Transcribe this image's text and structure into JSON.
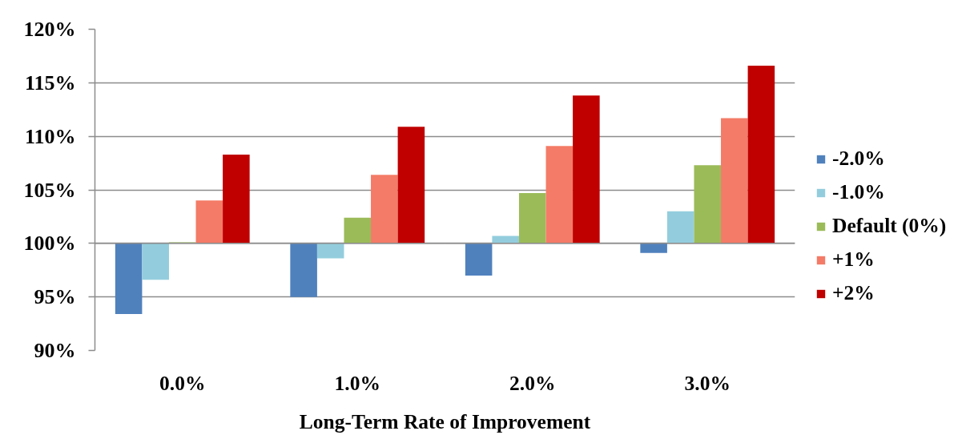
{
  "chart_data": {
    "type": "bar",
    "xlabel": "Long-Term Rate of Improvement",
    "categories": [
      "0.0%",
      "1.0%",
      "2.0%",
      "3.0%"
    ],
    "series": [
      {
        "name": "-2.0%",
        "color": "#4f81bd",
        "base": [
          100,
          100,
          100,
          100
        ],
        "values": [
          -6.6,
          -5.0,
          -3.0,
          -0.9
        ]
      },
      {
        "name": "-1.0%",
        "color": "#93cddd",
        "base": [
          100,
          100,
          100,
          100
        ],
        "values": [
          -3.4,
          -1.4,
          0.7,
          3.0
        ]
      },
      {
        "name": "Default (0%)",
        "color": "#9bbb59",
        "base": [
          100,
          100,
          100,
          100
        ],
        "values": [
          0.1,
          2.4,
          4.7,
          7.3
        ]
      },
      {
        "name": "+1%",
        "color": "#f47b67",
        "base": [
          100,
          100,
          100,
          100
        ],
        "values": [
          4.0,
          6.4,
          9.1,
          11.7
        ]
      },
      {
        "name": "+2%",
        "color": "#c00000",
        "base": [
          100,
          100,
          100,
          100
        ],
        "values": [
          8.3,
          10.9,
          13.8,
          16.6
        ]
      }
    ],
    "ylim": [
      90,
      120
    ],
    "yticks": [
      {
        "value": 90,
        "label": "90%"
      },
      {
        "value": 95,
        "label": "95%"
      },
      {
        "value": 100,
        "label": "100%"
      },
      {
        "value": 105,
        "label": "105%"
      },
      {
        "value": 110,
        "label": "110%"
      },
      {
        "value": 115,
        "label": "115%"
      },
      {
        "value": 120,
        "label": "120%"
      }
    ],
    "grid": "y",
    "legend": "right"
  }
}
